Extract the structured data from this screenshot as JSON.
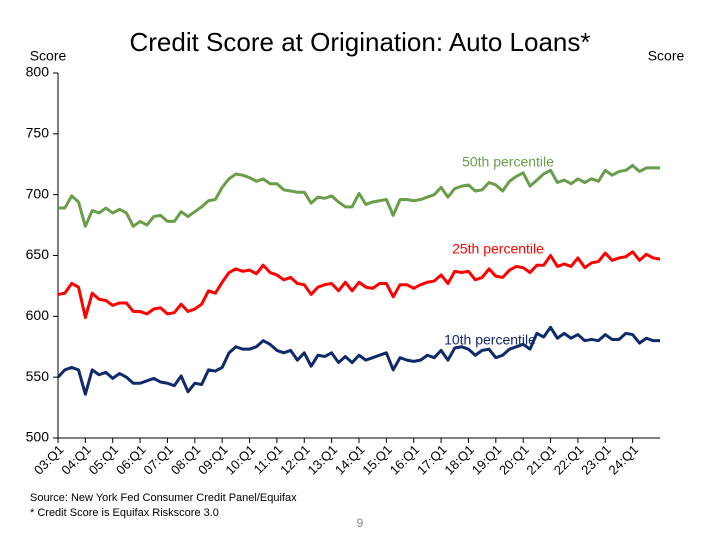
{
  "chart_data": {
    "type": "line",
    "title": "Credit Score at Origination: Auto Loans*",
    "ylabel": "Score",
    "y2label": "Score",
    "ylim": [
      500,
      800
    ],
    "yticks": [
      500,
      550,
      600,
      650,
      700,
      750,
      800
    ],
    "categories": [
      "03:Q1",
      null,
      null,
      null,
      "04:Q1",
      null,
      null,
      null,
      "05:Q1",
      null,
      null,
      null,
      "06:Q1",
      null,
      null,
      null,
      "07:Q1",
      null,
      null,
      null,
      "08:Q1",
      null,
      null,
      null,
      "09:Q1",
      null,
      null,
      null,
      "10:Q1",
      null,
      null,
      null,
      "11:Q1",
      null,
      null,
      null,
      "12:Q1",
      null,
      null,
      null,
      "13:Q1",
      null,
      null,
      null,
      "14:Q1",
      null,
      null,
      null,
      "15:Q1",
      null,
      null,
      null,
      "16:Q1",
      null,
      null,
      null,
      "17:Q1",
      null,
      null,
      null,
      "18:Q1",
      null,
      null,
      null,
      "19:Q1",
      null,
      null,
      null,
      "20:Q1",
      null,
      null,
      null,
      "21:Q1",
      null,
      null,
      null,
      "22:Q1",
      null,
      null,
      null,
      "23:Q1",
      null,
      null,
      null,
      "24:Q1",
      null,
      null,
      null,
      null
    ],
    "series": [
      {
        "name": "50th percentile",
        "color": "#6a9d4a",
        "values": [
          689,
          689,
          699,
          694,
          674,
          687,
          685,
          689,
          685,
          688,
          685,
          674,
          678,
          675,
          682,
          683,
          678,
          678,
          686,
          682,
          686,
          690,
          695,
          696,
          706,
          713,
          717,
          716,
          714,
          711,
          713,
          709,
          709,
          704,
          703,
          702,
          702,
          693,
          698,
          697,
          699,
          694,
          690,
          690,
          701,
          692,
          694,
          695,
          696,
          683,
          696,
          696,
          695,
          696,
          698,
          700,
          706,
          698,
          705,
          707,
          708,
          703,
          704,
          710,
          708,
          703,
          711,
          715,
          718,
          707,
          712,
          717,
          720,
          710,
          712,
          709,
          713,
          710,
          713,
          711,
          720,
          716,
          719,
          720,
          724,
          719,
          722,
          722,
          722
        ]
      },
      {
        "name": "25th percentile",
        "color": "#ff0000",
        "values": [
          618,
          619,
          627,
          624,
          599,
          619,
          614,
          613,
          609,
          611,
          611,
          604,
          604,
          602,
          606,
          607,
          602,
          603,
          610,
          604,
          606,
          610,
          621,
          619,
          628,
          636,
          639,
          637,
          638,
          635,
          642,
          636,
          634,
          630,
          632,
          627,
          626,
          618,
          624,
          626,
          627,
          621,
          628,
          621,
          628,
          624,
          623,
          627,
          627,
          616,
          626,
          626,
          623,
          626,
          628,
          629,
          634,
          627,
          637,
          636,
          637,
          630,
          632,
          639,
          633,
          632,
          638,
          641,
          640,
          636,
          642,
          642,
          650,
          641,
          643,
          641,
          648,
          640,
          644,
          645,
          652,
          646,
          648,
          649,
          653,
          646,
          651,
          648,
          647
        ]
      },
      {
        "name": "10th percentile",
        "color": "#10296b",
        "values": [
          550,
          556,
          558,
          556,
          536,
          556,
          552,
          554,
          549,
          553,
          550,
          545,
          545,
          547,
          549,
          546,
          545,
          543,
          551,
          538,
          545,
          544,
          556,
          555,
          558,
          570,
          575,
          573,
          573,
          575,
          580,
          577,
          572,
          570,
          572,
          564,
          570,
          559,
          568,
          567,
          570,
          562,
          567,
          562,
          568,
          564,
          566,
          568,
          570,
          556,
          566,
          564,
          563,
          564,
          568,
          566,
          572,
          564,
          574,
          575,
          573,
          568,
          572,
          573,
          566,
          568,
          573,
          575,
          577,
          573,
          586,
          583,
          591,
          582,
          586,
          582,
          585,
          580,
          581,
          580,
          585,
          581,
          581,
          586,
          585,
          578,
          582,
          580,
          580
        ]
      }
    ],
    "notes": [
      "Source: New York Fed Consumer Credit Panel/Equifax",
      "* Credit Score is Equifax Riskscore 3.0"
    ],
    "page_number": "9"
  }
}
